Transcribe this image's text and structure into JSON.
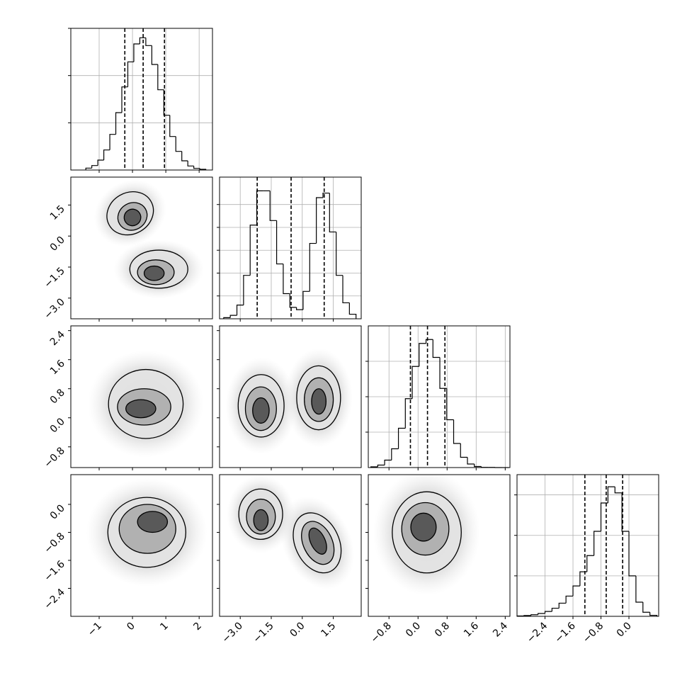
{
  "chart_data": {
    "type": "corner",
    "color": "#000000",
    "grid": true,
    "variables": [
      {
        "xlim": [
          -1.85,
          2.4
        ],
        "xticks": [
          {
            "value": -1,
            "label": "−1"
          },
          0,
          1,
          2
        ],
        "quantiles": [
          -0.23,
          0.32,
          0.96
        ],
        "bins": [
          -1.4,
          -1.22,
          -1.04,
          -0.86,
          -0.68,
          -0.5,
          -0.32,
          -0.14,
          0.04,
          0.22,
          0.4,
          0.58,
          0.76,
          0.94,
          1.12,
          1.3,
          1.48,
          1.66,
          1.84,
          2.02,
          2.2
        ],
        "counts": [
          8,
          19,
          42,
          85,
          151,
          243,
          352,
          458,
          534,
          560,
          527,
          447,
          340,
          232,
          142,
          79,
          39,
          17,
          7,
          3
        ],
        "ylim": [
          0,
          600
        ],
        "yticks": [
          200,
          400,
          600
        ]
      },
      {
        "xlim": [
          -4.0,
          2.85
        ],
        "xticks": [
          {
            "value": -3,
            "label": "−3.0"
          },
          {
            "value": -1.5,
            "label": "−1.5"
          },
          {
            "value": 0,
            "label": "0.0"
          },
          1.5
        ],
        "quantiles": [
          -2.18,
          -0.54,
          1.06
        ],
        "bins": [
          -3.8,
          -3.48,
          -3.16,
          -2.84,
          -2.52,
          -2.2,
          -1.88,
          -1.56,
          -1.24,
          -0.92,
          -0.6,
          -0.28,
          0.04,
          0.36,
          0.68,
          1.0,
          1.32,
          1.64,
          1.96,
          2.28,
          2.6
        ],
        "counts": [
          5,
          15,
          60,
          190,
          410,
          560,
          560,
          430,
          240,
          110,
          50,
          40,
          120,
          330,
          530,
          550,
          380,
          190,
          70,
          20
        ],
        "ylim": [
          0,
          620
        ],
        "yticks": [
          100,
          200,
          300,
          400,
          500
        ]
      },
      {
        "xlim": [
          -1.37,
          2.53
        ],
        "xticks": [
          {
            "value": -0.8,
            "label": "−0.8"
          },
          {
            "value": 0,
            "label": "0.0"
          },
          0.8,
          1.6,
          2.4
        ],
        "quantiles": [
          -0.21,
          0.26,
          0.74
        ],
        "bins": [
          -1.3,
          -1.11,
          -0.92,
          -0.73,
          -0.54,
          -0.35,
          -0.16,
          0.03,
          0.22,
          0.41,
          0.6,
          0.79,
          0.98,
          1.17,
          1.36,
          1.55,
          1.74,
          1.93,
          2.12,
          2.31,
          2.5
        ],
        "counts": [
          4,
          14,
          42,
          106,
          222,
          389,
          571,
          701,
          723,
          622,
          447,
          270,
          136,
          58,
          20,
          6,
          1,
          1,
          0,
          0
        ],
        "ylim": [
          0,
          800
        ],
        "yticks": [
          200,
          400,
          600
        ]
      },
      {
        "xlim": [
          -3.2,
          0.85
        ],
        "xticks": [
          {
            "value": -2.4,
            "label": "−2.4"
          },
          {
            "value": -1.6,
            "label": "−1.6"
          },
          {
            "value": -0.8,
            "label": "−0.8"
          },
          {
            "value": 0,
            "label": "0.0"
          }
        ],
        "quantiles": [
          -1.26,
          -0.65,
          -0.18
        ],
        "bins": [
          -3.2,
          -3.0,
          -2.8,
          -2.6,
          -2.4,
          -2.2,
          -2.0,
          -1.8,
          -1.6,
          -1.4,
          -1.2,
          -1.0,
          -0.8,
          -0.6,
          -0.4,
          -0.2,
          0.0,
          0.2,
          0.4,
          0.6,
          0.8
        ],
        "counts": [
          2,
          4,
          8,
          14,
          24,
          40,
          65,
          100,
          150,
          220,
          300,
          420,
          560,
          640,
          610,
          420,
          200,
          70,
          20,
          5
        ],
        "ylim": [
          0,
          700
        ],
        "yticks": [
          200,
          400,
          600
        ]
      }
    ],
    "pairs": [
      {
        "x_var": 0,
        "y_var": 1,
        "clusters": [
          [
            {
              "x": -0.07,
              "y": 1.1,
              "rx": 0.72,
              "ry": 1.0,
              "angle": -30
            },
            {
              "x": 0.0,
              "y": 0.95,
              "rx": 0.45,
              "ry": 0.65,
              "angle": -30
            },
            {
              "x": 0.0,
              "y": 0.9,
              "rx": 0.25,
              "ry": 0.4,
              "angle": -30
            }
          ],
          [
            {
              "x": 0.79,
              "y": -1.6,
              "rx": 0.87,
              "ry": 0.92
            },
            {
              "x": 0.7,
              "y": -1.75,
              "rx": 0.55,
              "ry": 0.6
            },
            {
              "x": 0.65,
              "y": -1.8,
              "rx": 0.3,
              "ry": 0.35
            }
          ]
        ]
      },
      {
        "x_var": 0,
        "y_var": 2,
        "clusters": [
          [
            {
              "x": 0.4,
              "y": 0.38,
              "rx": 1.12,
              "ry": 0.95
            },
            {
              "x": 0.35,
              "y": 0.3,
              "rx": 0.8,
              "ry": 0.5
            },
            {
              "x": 0.25,
              "y": 0.25,
              "rx": 0.45,
              "ry": 0.25
            }
          ]
        ]
      },
      {
        "x_var": 1,
        "y_var": 2,
        "clusters": [
          [
            {
              "x": -1.99,
              "y": 0.33,
              "rx": 1.11,
              "ry": 0.86
            },
            {
              "x": -2.0,
              "y": 0.25,
              "rx": 0.75,
              "ry": 0.6
            },
            {
              "x": -2.0,
              "y": 0.2,
              "rx": 0.4,
              "ry": 0.35
            }
          ],
          [
            {
              "x": 0.79,
              "y": 0.55,
              "rx": 1.06,
              "ry": 0.88
            },
            {
              "x": 0.8,
              "y": 0.5,
              "rx": 0.7,
              "ry": 0.6
            },
            {
              "x": 0.8,
              "y": 0.45,
              "rx": 0.35,
              "ry": 0.35
            }
          ]
        ]
      },
      {
        "x_var": 0,
        "y_var": 3,
        "clusters": [
          [
            {
              "x": 0.43,
              "y": -0.8,
              "rx": 1.17,
              "ry": 1.0
            },
            {
              "x": 0.45,
              "y": -0.7,
              "rx": 0.85,
              "ry": 0.7
            },
            {
              "x": 0.6,
              "y": -0.5,
              "rx": 0.45,
              "ry": 0.3
            }
          ]
        ]
      },
      {
        "x_var": 1,
        "y_var": 3,
        "clusters": [
          [
            {
              "x": -2.01,
              "y": -0.28,
              "rx": 1.06,
              "ry": 0.72
            },
            {
              "x": -2.0,
              "y": -0.35,
              "rx": 0.7,
              "ry": 0.5
            },
            {
              "x": -2.0,
              "y": -0.45,
              "rx": 0.35,
              "ry": 0.3
            }
          ],
          [
            {
              "x": 0.72,
              "y": -1.1,
              "rx": 1.06,
              "ry": 0.9,
              "angle": -25
            },
            {
              "x": 0.75,
              "y": -1.1,
              "rx": 0.7,
              "ry": 0.65,
              "angle": -25
            },
            {
              "x": 0.75,
              "y": -1.05,
              "rx": 0.35,
              "ry": 0.4,
              "angle": -25
            }
          ]
        ]
      },
      {
        "x_var": 2,
        "y_var": 3,
        "clusters": [
          [
            {
              "x": 0.24,
              "y": -0.8,
              "rx": 0.95,
              "ry": 1.16
            },
            {
              "x": 0.2,
              "y": -0.7,
              "rx": 0.65,
              "ry": 0.75
            },
            {
              "x": 0.15,
              "y": -0.65,
              "rx": 0.35,
              "ry": 0.4
            }
          ]
        ]
      }
    ]
  }
}
